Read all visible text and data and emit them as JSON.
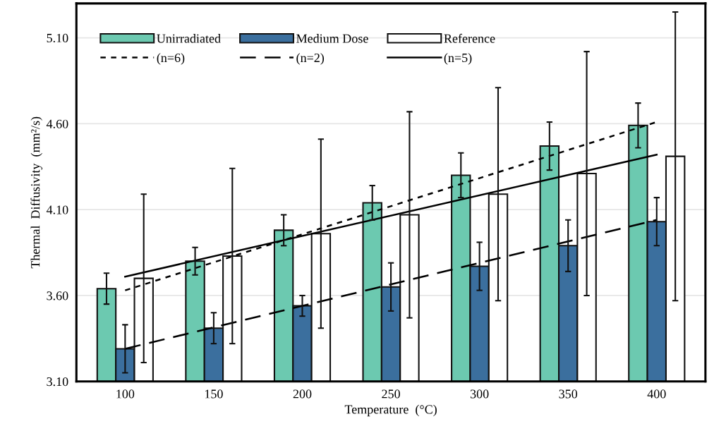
{
  "chart_data": {
    "type": "bar",
    "xlabel": "Temperature  (°C)",
    "ylabel": "Thermal  Diffusivity  (mm²/s)",
    "categories": [
      "100",
      "150",
      "200",
      "250",
      "300",
      "350",
      "400"
    ],
    "series": [
      {
        "name": "Unirradiated",
        "color": "#6cc9b0",
        "values": [
          3.64,
          3.8,
          3.98,
          4.14,
          4.3,
          4.47,
          4.59
        ],
        "errors": [
          0.09,
          0.08,
          0.09,
          0.1,
          0.13,
          0.14,
          0.13
        ]
      },
      {
        "name": "Medium Dose",
        "color": "#3b6f9e",
        "values": [
          3.29,
          3.41,
          3.54,
          3.65,
          3.77,
          3.89,
          4.03
        ],
        "errors": [
          0.14,
          0.09,
          0.06,
          0.14,
          0.14,
          0.15,
          0.14
        ]
      },
      {
        "name": "Reference",
        "color": "#ffffff",
        "values": [
          3.7,
          3.83,
          3.96,
          4.07,
          4.19,
          4.31,
          4.41
        ],
        "errors": [
          0.49,
          0.51,
          0.55,
          0.6,
          0.62,
          0.71,
          0.84
        ]
      },
      {
        "name": "(n=6)",
        "type": "line",
        "color": "#000000",
        "line_style": "dashed",
        "x": [
          "100",
          "400"
        ],
        "values": [
          3.63,
          4.61
        ]
      },
      {
        "name": "(n=2)",
        "type": "line",
        "color": "#000000",
        "line_style": "dashed",
        "x": [
          "100",
          "400"
        ],
        "values": [
          3.29,
          4.04
        ]
      },
      {
        "name": "(n=5)",
        "type": "line",
        "color": "#000000",
        "line_style": "solid",
        "x": [
          "100",
          "400"
        ],
        "values": [
          3.71,
          4.42
        ]
      }
    ],
    "ylim": [
      3.1,
      5.3
    ],
    "yticks": [
      {
        "value": 3.1,
        "label": "3.10"
      },
      {
        "value": 3.6,
        "label": "3.60"
      },
      {
        "value": 4.1,
        "label": "4.10"
      },
      {
        "value": 4.6,
        "label": "4.60"
      },
      {
        "value": 5.1,
        "label": "5.10"
      }
    ],
    "grid": "y",
    "legend": "top left",
    "marker": "none"
  }
}
